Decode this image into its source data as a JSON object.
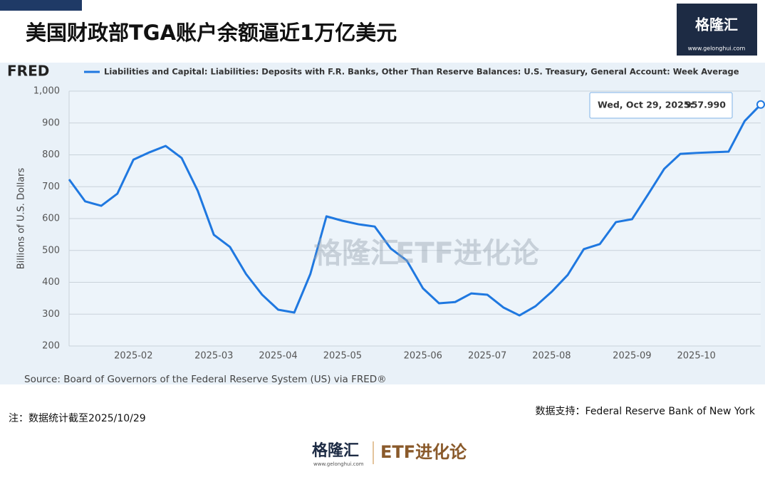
{
  "header": {
    "title": "美国财政部TGA账户余额逼近1万亿美元",
    "logo": "格隆汇",
    "logo_url": "www.gelonghui.com"
  },
  "chart_data": {
    "type": "line",
    "brand": "FRED",
    "ylabel": "Billions of U.S. Dollars",
    "source": "Source: Board of Governors of the Federal Reserve System (US) via FRED®",
    "categories": [
      null,
      null,
      null,
      null,
      "2025-02",
      null,
      null,
      null,
      null,
      "2025-03",
      null,
      null,
      null,
      "2025-04",
      null,
      null,
      null,
      "2025-05",
      null,
      null,
      null,
      null,
      "2025-06",
      null,
      null,
      null,
      "2025-07",
      null,
      null,
      null,
      "2025-08",
      null,
      null,
      null,
      null,
      "2025-09",
      null,
      null,
      null,
      "2025-10",
      null,
      null,
      null,
      null
    ],
    "series": [
      {
        "name": "Liabilities and Capital: Liabilities: Deposits with F.R. Banks, Other Than Reserve Balances: U.S. Treasury, General Account: Week Average",
        "color": "#1f78e0",
        "values": [
          723,
          654,
          640,
          678,
          785,
          808,
          828,
          790,
          687,
          549,
          511,
          426,
          361,
          314,
          305,
          426,
          607,
          593,
          582,
          575,
          506,
          468,
          381,
          334,
          338,
          365,
          361,
          321,
          296,
          325,
          370,
          423,
          504,
          520,
          589,
          598,
          676,
          756,
          803,
          806,
          808,
          810,
          906,
          957.99
        ],
        "value_labels": [
          null,
          null,
          null,
          null,
          null,
          null,
          null,
          null,
          null,
          null,
          null,
          null,
          null,
          null,
          null,
          null,
          null,
          null,
          null,
          null,
          null,
          null,
          null,
          null,
          null,
          null,
          null,
          null,
          null,
          null,
          null,
          null,
          null,
          null,
          null,
          null,
          null,
          null,
          null,
          null,
          null,
          null,
          null,
          "957.990"
        ]
      }
    ],
    "tooltip_date": "Wed, Oct 29, 2025:",
    "ylim": [
      200,
      1000
    ],
    "yticks": [
      200,
      300,
      400,
      500,
      600,
      700,
      800,
      900,
      {
        "value": 1000,
        "label": "1,000"
      }
    ],
    "grid": true
  },
  "watermark": {
    "logo": "格隆汇",
    "text": "ETF进化论"
  },
  "footer": {
    "note": "注：数据统计截至2025/10/29",
    "support": "数据支持：Federal Reserve Bank of New York",
    "logo": "格隆汇",
    "logo_url": "www.gelonghui.com",
    "text": "ETF进化论"
  }
}
